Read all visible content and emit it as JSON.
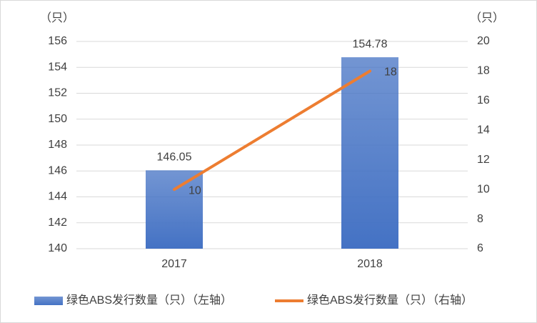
{
  "chart_data": {
    "type": "bar",
    "y_label": "（只）",
    "y2_label": "（只）",
    "categories": [
      "2017",
      "2018"
    ],
    "series": [
      {
        "name": "绿色ABS发行数量（只）（左轴）",
        "type": "bar",
        "color": "#4472c4",
        "values": [
          146.05,
          154.78
        ]
      },
      {
        "name": "绿色ABS发行数量（只）（右轴）",
        "type": "line",
        "axis": "y2",
        "color": "#ed7d31",
        "values": [
          10,
          18
        ]
      }
    ],
    "ylim": [
      140,
      156
    ],
    "yticks": [
      140,
      142,
      144,
      146,
      148,
      150,
      152,
      154,
      156
    ],
    "y2lim": [
      6,
      20
    ],
    "y2ticks": [
      6,
      8,
      10,
      12,
      14,
      16,
      18,
      20
    ],
    "grid": true
  }
}
